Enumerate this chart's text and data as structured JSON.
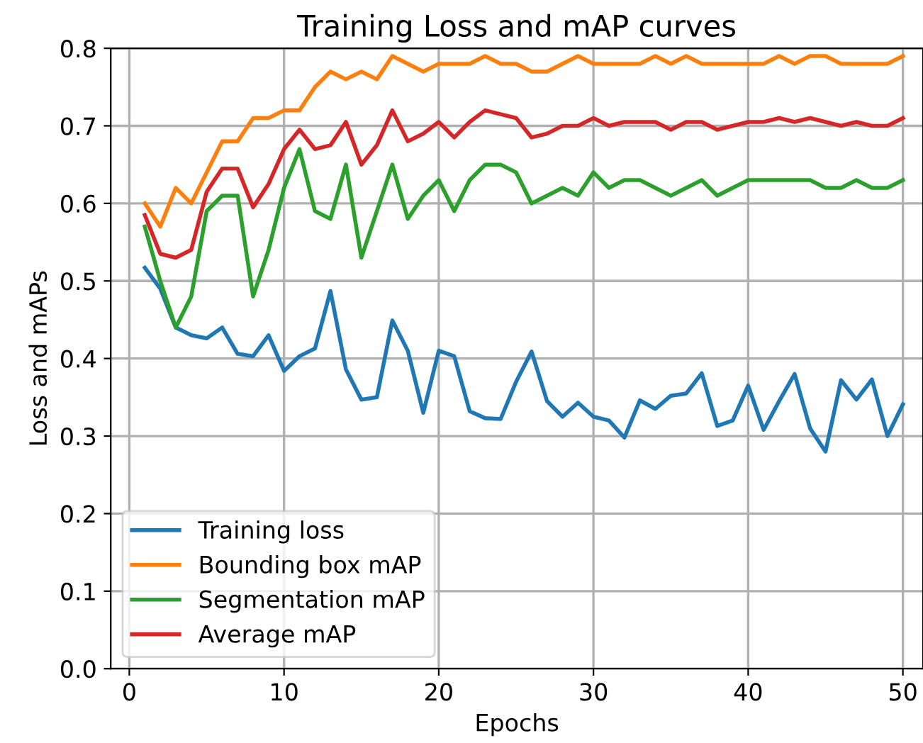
{
  "chart_data": {
    "type": "line",
    "title": "Training Loss and mAP curves",
    "xlabel": "Epochs",
    "ylabel": "Loss and mAPs",
    "x": [
      1,
      2,
      3,
      4,
      5,
      6,
      7,
      8,
      9,
      10,
      11,
      12,
      13,
      14,
      15,
      16,
      17,
      18,
      19,
      20,
      21,
      22,
      23,
      24,
      25,
      26,
      27,
      28,
      29,
      30,
      31,
      32,
      33,
      34,
      35,
      36,
      37,
      38,
      39,
      40,
      41,
      42,
      43,
      44,
      45,
      46,
      47,
      48,
      49,
      50
    ],
    "series": [
      {
        "name": "Training loss",
        "color": "#1f77b4",
        "values": [
          0.517,
          0.49,
          0.44,
          0.43,
          0.426,
          0.44,
          0.406,
          0.403,
          0.43,
          0.384,
          0.403,
          0.413,
          0.487,
          0.386,
          0.347,
          0.35,
          0.449,
          0.41,
          0.33,
          0.41,
          0.403,
          0.332,
          0.323,
          0.322,
          0.37,
          0.409,
          0.345,
          0.325,
          0.343,
          0.325,
          0.32,
          0.298,
          0.346,
          0.335,
          0.352,
          0.355,
          0.381,
          0.313,
          0.32,
          0.365,
          0.308,
          0.345,
          0.38,
          0.31,
          0.28,
          0.372,
          0.347,
          0.373,
          0.3,
          0.341
        ]
      },
      {
        "name": "Bounding box mAP",
        "color": "#ff7f0e",
        "values": [
          0.6,
          0.57,
          0.62,
          0.6,
          0.64,
          0.68,
          0.68,
          0.71,
          0.71,
          0.72,
          0.72,
          0.75,
          0.77,
          0.76,
          0.77,
          0.76,
          0.79,
          0.78,
          0.77,
          0.78,
          0.78,
          0.78,
          0.79,
          0.78,
          0.78,
          0.77,
          0.77,
          0.78,
          0.79,
          0.78,
          0.78,
          0.78,
          0.78,
          0.79,
          0.78,
          0.79,
          0.78,
          0.78,
          0.78,
          0.78,
          0.78,
          0.79,
          0.78,
          0.79,
          0.79,
          0.78,
          0.78,
          0.78,
          0.78,
          0.79
        ]
      },
      {
        "name": "Segmentation mAP",
        "color": "#2ca02c",
        "values": [
          0.57,
          0.5,
          0.44,
          0.48,
          0.59,
          0.61,
          0.61,
          0.48,
          0.54,
          0.62,
          0.67,
          0.59,
          0.58,
          0.65,
          0.53,
          0.59,
          0.65,
          0.58,
          0.61,
          0.63,
          0.59,
          0.63,
          0.65,
          0.65,
          0.64,
          0.6,
          0.61,
          0.62,
          0.61,
          0.64,
          0.62,
          0.63,
          0.63,
          0.62,
          0.61,
          0.62,
          0.63,
          0.61,
          0.62,
          0.63,
          0.63,
          0.63,
          0.63,
          0.63,
          0.62,
          0.62,
          0.63,
          0.62,
          0.62,
          0.63
        ]
      },
      {
        "name": "Average mAP",
        "color": "#d62728",
        "values": [
          0.585,
          0.535,
          0.53,
          0.54,
          0.615,
          0.645,
          0.645,
          0.595,
          0.625,
          0.67,
          0.695,
          0.67,
          0.675,
          0.705,
          0.65,
          0.675,
          0.72,
          0.68,
          0.69,
          0.705,
          0.685,
          0.705,
          0.72,
          0.715,
          0.71,
          0.685,
          0.69,
          0.7,
          0.7,
          0.71,
          0.7,
          0.705,
          0.705,
          0.705,
          0.695,
          0.705,
          0.705,
          0.695,
          0.7,
          0.705,
          0.705,
          0.71,
          0.705,
          0.71,
          0.705,
          0.7,
          0.705,
          0.7,
          0.7,
          0.71
        ]
      }
    ],
    "xlim": [
      -1.2,
      51.3
    ],
    "xticks": [
      0,
      10,
      20,
      30,
      40,
      50
    ],
    "ylim": [
      0.0,
      0.8
    ],
    "yticks": [
      {
        "value": 0,
        "label": "0.0"
      },
      {
        "value": 0.1,
        "label": "0.1"
      },
      {
        "value": 0.2,
        "label": "0.2"
      },
      {
        "value": 0.3,
        "label": "0.3"
      },
      {
        "value": 0.4,
        "label": "0.4"
      },
      {
        "value": 0.5,
        "label": "0.5"
      },
      {
        "value": 0.6,
        "label": "0.6"
      },
      {
        "value": 0.7,
        "label": "0.7"
      },
      {
        "value": 0.8,
        "label": "0.8"
      }
    ],
    "grid": true,
    "legend": "bottom left"
  }
}
